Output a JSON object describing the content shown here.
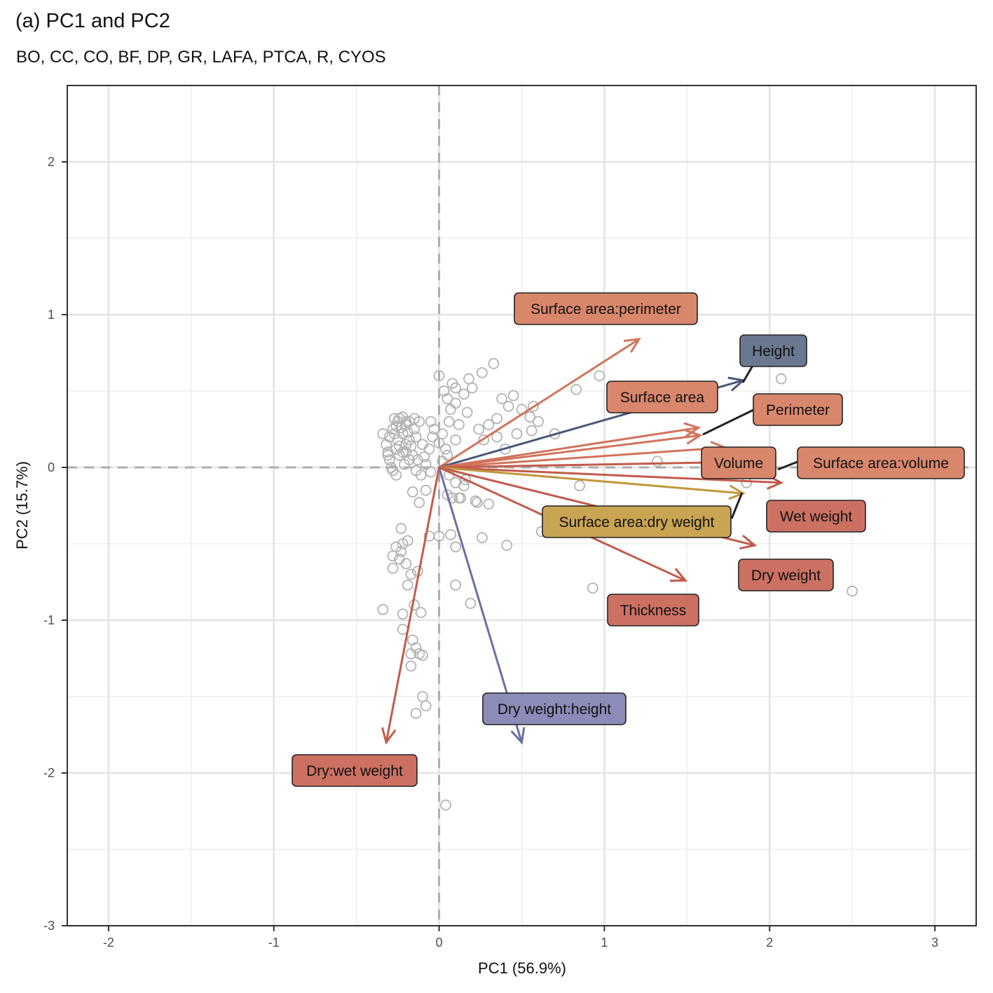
{
  "title": "(a) PC1 and PC2",
  "subtitle": "BO, CC, CO, BF, DP, GR, LAFA, PTCA, R, CYOS",
  "chart_data": {
    "type": "scatter",
    "subtype": "pca-biplot",
    "xlabel": "PC1 (56.9%)",
    "ylabel": "PC2 (15.7%)",
    "xlim": [
      -2.25,
      3.25
    ],
    "ylim": [
      -3,
      2.5
    ],
    "xticks": [
      -2,
      -1,
      0,
      1,
      2,
      3
    ],
    "yticks": [
      -3,
      -2,
      -1,
      0,
      1,
      2
    ],
    "xtick_labels": [
      "-2",
      "-1",
      "0",
      "1",
      "2",
      "3"
    ],
    "ytick_labels": [
      "-3",
      "-2",
      "-1",
      "0",
      "1",
      "2"
    ],
    "grid": true,
    "reference_lines": {
      "x": 0,
      "y": 0,
      "style": "dashed"
    },
    "point_color": "#b3b3b3",
    "points": [
      [
        -0.3,
        0.2
      ],
      [
        -0.28,
        0.25
      ],
      [
        -0.25,
        0.3
      ],
      [
        -0.22,
        0.22
      ],
      [
        -0.2,
        0.28
      ],
      [
        -0.18,
        0.18
      ],
      [
        -0.26,
        0.12
      ],
      [
        -0.32,
        0.15
      ],
      [
        -0.24,
        0.08
      ],
      [
        -0.2,
        0.1
      ],
      [
        -0.15,
        0.25
      ],
      [
        -0.12,
        0.3
      ],
      [
        -0.3,
        0.05
      ],
      [
        -0.34,
        0.22
      ],
      [
        -0.27,
        0.32
      ],
      [
        -0.22,
        0.33
      ],
      [
        -0.18,
        0.3
      ],
      [
        -0.14,
        0.2
      ],
      [
        -0.1,
        0.15
      ],
      [
        -0.16,
        0.08
      ],
      [
        -0.21,
        0.02
      ],
      [
        -0.28,
        -0.02
      ],
      [
        -0.25,
        0.18
      ],
      [
        -0.23,
        0.26
      ],
      [
        -0.19,
        0.23
      ],
      [
        -0.26,
        0.27
      ],
      [
        -0.31,
        0.1
      ],
      [
        -0.29,
        0.0
      ],
      [
        -0.24,
        0.14
      ],
      [
        -0.17,
        0.14
      ],
      [
        -0.13,
        0.05
      ],
      [
        -0.09,
        0.07
      ],
      [
        -0.06,
        0.12
      ],
      [
        -0.04,
        0.2
      ],
      [
        -0.08,
        0.02
      ],
      [
        -0.14,
        -0.02
      ],
      [
        -0.05,
        0.3
      ],
      [
        0.0,
        0.6
      ],
      [
        0.03,
        0.5
      ],
      [
        0.08,
        0.55
      ],
      [
        0.1,
        0.52
      ],
      [
        0.05,
        0.45
      ],
      [
        0.07,
        0.38
      ],
      [
        0.1,
        0.42
      ],
      [
        0.15,
        0.48
      ],
      [
        0.2,
        0.52
      ],
      [
        0.18,
        0.58
      ],
      [
        0.26,
        0.62
      ],
      [
        0.33,
        0.68
      ],
      [
        0.17,
        0.36
      ],
      [
        0.12,
        0.28
      ],
      [
        0.06,
        0.3
      ],
      [
        0.02,
        0.22
      ],
      [
        0.0,
        0.16
      ],
      [
        -0.03,
        0.25
      ],
      [
        0.04,
        0.12
      ],
      [
        0.24,
        0.25
      ],
      [
        0.3,
        0.28
      ],
      [
        0.27,
        0.18
      ],
      [
        0.35,
        0.32
      ],
      [
        0.42,
        0.4
      ],
      [
        0.38,
        0.45
      ],
      [
        0.45,
        0.47
      ],
      [
        0.5,
        0.38
      ],
      [
        0.55,
        0.33
      ],
      [
        0.6,
        0.3
      ],
      [
        0.57,
        0.4
      ],
      [
        0.47,
        0.22
      ],
      [
        0.56,
        0.24
      ],
      [
        0.7,
        0.22
      ],
      [
        0.35,
        0.2
      ],
      [
        0.4,
        0.12
      ],
      [
        0.83,
        0.51
      ],
      [
        0.97,
        0.6
      ],
      [
        1.32,
        0.04
      ],
      [
        2.07,
        0.58
      ],
      [
        1.86,
        -0.1
      ],
      [
        0.85,
        -0.12
      ],
      [
        0.02,
        0.04
      ],
      [
        -0.05,
        -0.03
      ],
      [
        0.06,
        -0.05
      ],
      [
        0.1,
        -0.1
      ],
      [
        0.15,
        -0.12
      ],
      [
        0.12,
        -0.2
      ],
      [
        0.08,
        -0.2
      ],
      [
        0.05,
        -0.18
      ],
      [
        0.13,
        -0.2
      ],
      [
        0.22,
        -0.22
      ],
      [
        0.23,
        -0.23
      ],
      [
        0.3,
        -0.24
      ],
      [
        0.0,
        -0.45
      ],
      [
        -0.06,
        -0.45
      ],
      [
        0.07,
        -0.44
      ],
      [
        0.1,
        -0.52
      ],
      [
        0.26,
        -0.46
      ],
      [
        0.41,
        -0.51
      ],
      [
        0.62,
        -0.42
      ],
      [
        0.93,
        -0.79
      ],
      [
        2.5,
        -0.81
      ],
      [
        0.1,
        -0.77
      ],
      [
        0.19,
        -0.89
      ],
      [
        -0.08,
        -0.15
      ],
      [
        -0.12,
        -0.23
      ],
      [
        -0.16,
        -0.16
      ],
      [
        -0.23,
        -0.4
      ],
      [
        -0.26,
        -0.52
      ],
      [
        -0.28,
        -0.58
      ],
      [
        -0.22,
        -0.5
      ],
      [
        -0.19,
        -0.48
      ],
      [
        -0.23,
        -0.55
      ],
      [
        -0.2,
        -0.63
      ],
      [
        -0.24,
        -0.6
      ],
      [
        -0.28,
        -0.66
      ],
      [
        -0.17,
        -0.7
      ],
      [
        -0.13,
        -0.68
      ],
      [
        -0.19,
        -0.77
      ],
      [
        -0.15,
        -0.9
      ],
      [
        -0.22,
        -0.96
      ],
      [
        -0.11,
        -0.95
      ],
      [
        -0.34,
        -0.93
      ],
      [
        -0.22,
        -1.06
      ],
      [
        -0.16,
        -1.13
      ],
      [
        -0.14,
        -1.18
      ],
      [
        -0.17,
        -1.22
      ],
      [
        -0.12,
        -1.22
      ],
      [
        -0.1,
        -1.23
      ],
      [
        -0.17,
        -1.3
      ],
      [
        -0.1,
        -1.5
      ],
      [
        -0.08,
        -1.56
      ],
      [
        -0.14,
        -1.61
      ],
      [
        0.04,
        -2.21
      ],
      [
        -0.31,
        0.08
      ],
      [
        -0.27,
        0.22
      ],
      [
        -0.2,
        0.15
      ],
      [
        -0.22,
        0.1
      ],
      [
        -0.18,
        0.05
      ],
      [
        -0.26,
        -0.05
      ],
      [
        -0.11,
        -0.05
      ],
      [
        0.1,
        0.18
      ],
      [
        0.16,
        -0.08
      ],
      [
        0.05,
        0.08
      ],
      [
        -0.2,
        0.3
      ],
      [
        -0.24,
        0.32
      ],
      [
        -0.15,
        0.32
      ]
    ],
    "loadings": [
      {
        "label": "Surface area:perimeter",
        "x": 1.21,
        "y": 0.84,
        "color": "#d2735a",
        "label_fill": "#d9876c"
      },
      {
        "label": "Height",
        "x": 1.84,
        "y": 0.57,
        "color": "#4a5878",
        "label_fill": "#6b7891"
      },
      {
        "label": "Surface area",
        "x": 1.57,
        "y": 0.26,
        "color": "#d2735a",
        "label_fill": "#d9876c"
      },
      {
        "label": "Perimeter",
        "x": 1.58,
        "y": 0.21,
        "color": "#d2735a",
        "label_fill": "#d9876c"
      },
      {
        "label": "Volume",
        "x": 1.73,
        "y": 0.13,
        "color": "#d2735a",
        "label_fill": "#d9876c"
      },
      {
        "label": "Surface area:volume",
        "x": 2.03,
        "y": 0.04,
        "color": "#c25b4b",
        "label_fill": "#d9876c"
      },
      {
        "label": "Wet weight",
        "x": 2.07,
        "y": -0.1,
        "color": "#c25b4b",
        "label_fill": "#cc7162"
      },
      {
        "label": "Surface area:dry weight",
        "x": 1.84,
        "y": -0.17,
        "color": "#c0973a",
        "label_fill": "#c9a452"
      },
      {
        "label": "Dry weight",
        "x": 1.91,
        "y": -0.51,
        "color": "#c25b4b",
        "label_fill": "#cc7162"
      },
      {
        "label": "Thickness",
        "x": 1.49,
        "y": -0.74,
        "color": "#c25b4b",
        "label_fill": "#cc7162"
      },
      {
        "label": "Dry weight:height",
        "x": 0.5,
        "y": -1.8,
        "color": "#6c6fa3",
        "label_fill": "#8b8db8"
      },
      {
        "label": "Dry:wet weight",
        "x": -0.32,
        "y": -1.8,
        "color": "#c25b4b",
        "label_fill": "#cc7162"
      }
    ]
  }
}
